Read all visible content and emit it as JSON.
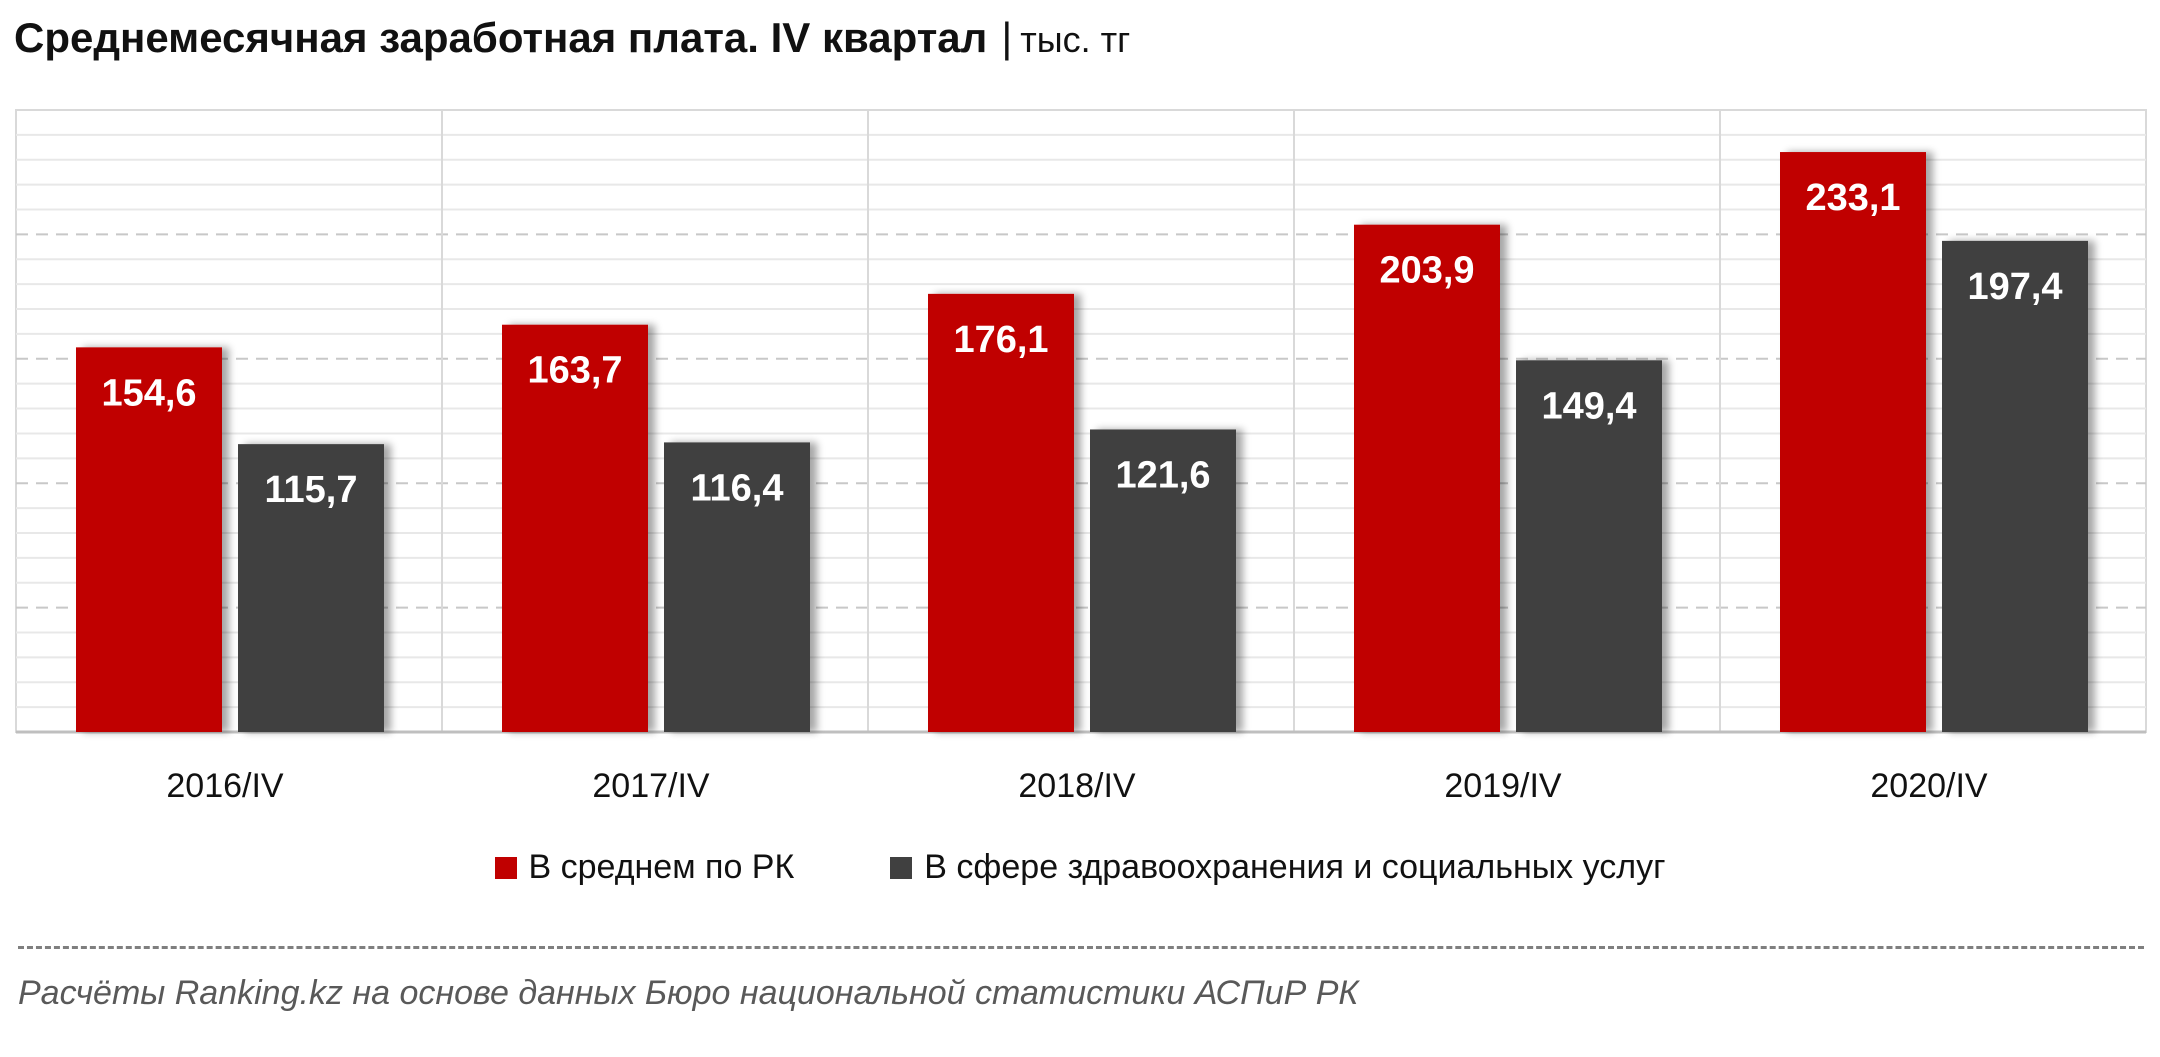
{
  "header": {
    "title": "Среднемесячная заработная плата.  IV квартал",
    "separator": "|",
    "unit": "тыс. тг"
  },
  "chart_data": {
    "type": "bar",
    "categories": [
      "2016/IV",
      "2017/IV",
      "2018/IV",
      "2019/IV",
      "2020/IV"
    ],
    "series": [
      {
        "name": "В среднем по РК",
        "color": "#c00000",
        "values": [
          154.6,
          163.7,
          176.1,
          203.9,
          233.1
        ],
        "labels": [
          "154,6",
          "163,7",
          "176,1",
          "203,9",
          "233,1"
        ]
      },
      {
        "name": "В сфере здравоохранения и социальных услуг",
        "color": "#404040",
        "values": [
          115.7,
          116.4,
          121.6,
          149.4,
          197.4
        ],
        "labels": [
          "115,7",
          "116,4",
          "121,6",
          "149,4",
          "197,4"
        ]
      }
    ],
    "ylim": [
      0,
      250
    ],
    "grid": true,
    "legend_position": "bottom",
    "data_labels": "inside-top"
  },
  "footer": {
    "source": "Расчёты Ranking.kz на основе данных  Бюро национальной  статистики АСПиР РК"
  }
}
